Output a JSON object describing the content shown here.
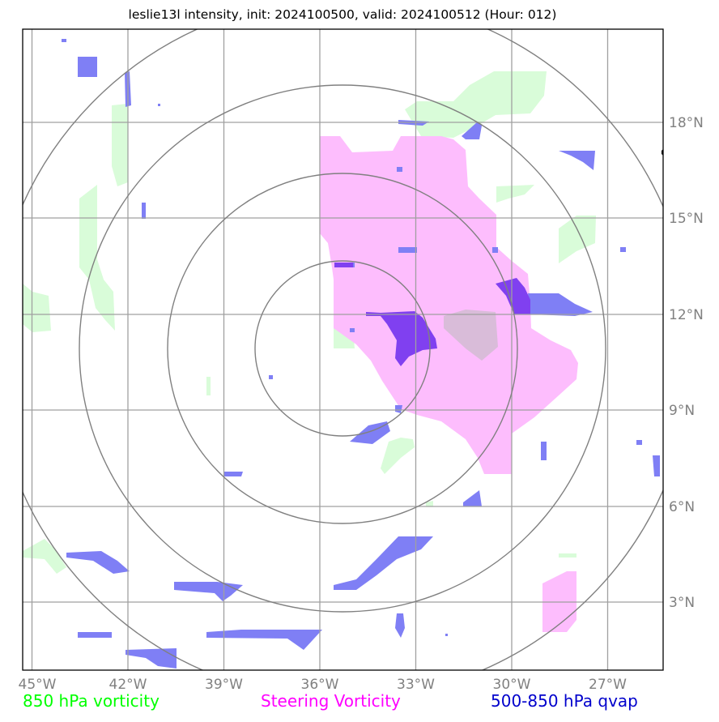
{
  "title": "leslie13l intensity, init: 2024100500, valid: 2024100512 (Hour: 012)",
  "lon_labels": [
    "45°W",
    "42°W",
    "39°W",
    "36°W",
    "33°W",
    "30°W",
    "27°W"
  ],
  "lat_labels": [
    "18°N",
    "15°N",
    "12°N",
    "9°N",
    "6°N",
    "3°N"
  ],
  "legend": {
    "vort850": {
      "label": "850 hPa vorticity",
      "color": "#00ff00"
    },
    "steering": {
      "label": "Steering Vorticity",
      "color": "#ff00ff"
    },
    "qvap": {
      "label": "500-850 hPa qvap",
      "color": "#0000cc"
    }
  },
  "colors": {
    "vort850_fill": "#d9fcd9",
    "steering_fill": "#fdbdfd",
    "qvap_fill": "#7f7ff5",
    "overlap_fill": "#8040f0",
    "grid": "#a0a0a0",
    "rings": "#808080",
    "tick_label": "#808080"
  }
}
